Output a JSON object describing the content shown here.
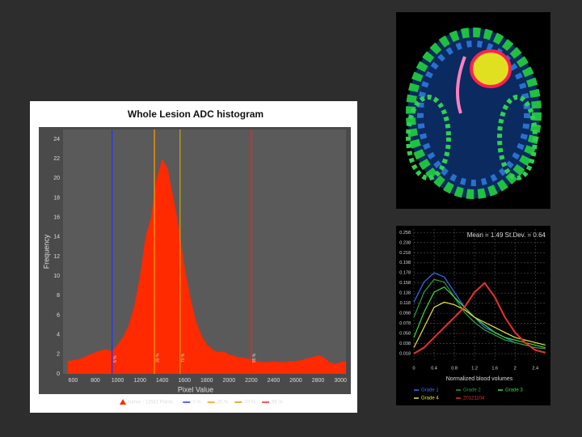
{
  "chart_data": [
    {
      "type": "area",
      "title": "Whole Lesion ADC histogram",
      "x_label": "Pixel Value",
      "y_label": "Frequency",
      "x": [
        550,
        600,
        650,
        700,
        750,
        800,
        850,
        900,
        950,
        1000,
        1050,
        1100,
        1150,
        1200,
        1250,
        1300,
        1350,
        1400,
        1450,
        1500,
        1550,
        1600,
        1650,
        1700,
        1750,
        1800,
        1850,
        1900,
        1950,
        2000,
        2050,
        2100,
        2150,
        2200,
        2250,
        2300,
        2350,
        2400,
        2450,
        2500,
        2550,
        2600,
        2650,
        2700,
        2750,
        2800,
        2850,
        2900,
        2950,
        3000,
        3050
      ],
      "series": [
        {
          "name": "tumor - 11591 Points",
          "color": "#ff2a00",
          "values": [
            1.3,
            1.4,
            1.5,
            1.7,
            2.0,
            2.2,
            2.4,
            2.5,
            2.3,
            3.0,
            3.8,
            5.0,
            7.0,
            10,
            14,
            16,
            20,
            22,
            21,
            18,
            15,
            11,
            8,
            5.5,
            4,
            3,
            2.5,
            2.2,
            2.3,
            2.0,
            1.8,
            1.7,
            1.6,
            1.5,
            1.3,
            1.2,
            1.2,
            1.3,
            1.2,
            1.2,
            1.3,
            1.3,
            1.4,
            1.6,
            1.7,
            1.9,
            1.7,
            1.2,
            1.0,
            1.2,
            1.3
          ]
        }
      ],
      "markers": [
        {
          "label": "5 %",
          "value": 950,
          "color": "#2233ff"
        },
        {
          "label": "30 %",
          "value": 1330,
          "color": "#ff9900"
        },
        {
          "label": "70 %",
          "value": 1560,
          "color": "#c8a000"
        },
        {
          "label": "95 %",
          "value": 2200,
          "color": "#ff2020"
        }
      ],
      "xlim": [
        510,
        3050
      ],
      "xticks": [
        600,
        800,
        1000,
        1200,
        1400,
        1600,
        1800,
        2000,
        2200,
        2400,
        2600,
        2800,
        3000
      ],
      "ylim": [
        0,
        25
      ],
      "yticks": [
        0,
        2,
        4,
        6,
        8,
        10,
        12,
        14,
        16,
        18,
        20,
        22,
        24
      ],
      "grid": false
    },
    {
      "type": "line",
      "annotation": "Mean =  1.49   St.Dev. =  0.64",
      "x_label": "Normalized blood volumes",
      "x": [
        0,
        0.2,
        0.4,
        0.6,
        0.8,
        1.0,
        1.2,
        1.4,
        1.6,
        1.8,
        2.0,
        2.2,
        2.4,
        2.6
      ],
      "series": [
        {
          "name": "Grade 1",
          "color": "#3a6cff",
          "values": [
            0.12,
            0.16,
            0.178,
            0.17,
            0.14,
            0.11,
            0.09,
            0.07,
            0.06,
            0.05,
            0.04,
            0.035,
            0.03,
            0.028
          ]
        },
        {
          "name": "Grade 2",
          "color": "#2e9e3a",
          "values": [
            0.09,
            0.14,
            0.165,
            0.16,
            0.13,
            0.1,
            0.08,
            0.065,
            0.055,
            0.045,
            0.04,
            0.035,
            0.03,
            0.028
          ]
        },
        {
          "name": "Grade 3",
          "color": "#38e038",
          "values": [
            0.05,
            0.1,
            0.14,
            0.15,
            0.13,
            0.11,
            0.09,
            0.075,
            0.06,
            0.05,
            0.045,
            0.04,
            0.035,
            0.03
          ]
        },
        {
          "name": "Grade 4",
          "color": "#e8e83a",
          "values": [
            0.03,
            0.07,
            0.11,
            0.12,
            0.115,
            0.105,
            0.09,
            0.08,
            0.07,
            0.06,
            0.05,
            0.045,
            0.04,
            0.035
          ]
        },
        {
          "name": "20121104",
          "color": "#e83030",
          "values": [
            0.018,
            0.03,
            0.05,
            0.07,
            0.09,
            0.11,
            0.14,
            0.158,
            0.13,
            0.09,
            0.06,
            0.04,
            0.025,
            0.02
          ]
        }
      ],
      "xlim": [
        0,
        2.62
      ],
      "xticks": [
        0,
        0.4,
        0.8,
        1.2,
        1.6,
        2,
        2.4
      ],
      "ylim": [
        0.002,
        0.265
      ],
      "yticks": [
        0.018,
        0.038,
        0.058,
        0.078,
        0.098,
        0.118,
        0.138,
        0.158,
        0.178,
        0.198,
        0.218,
        0.238,
        0.258
      ],
      "grid": true
    }
  ]
}
